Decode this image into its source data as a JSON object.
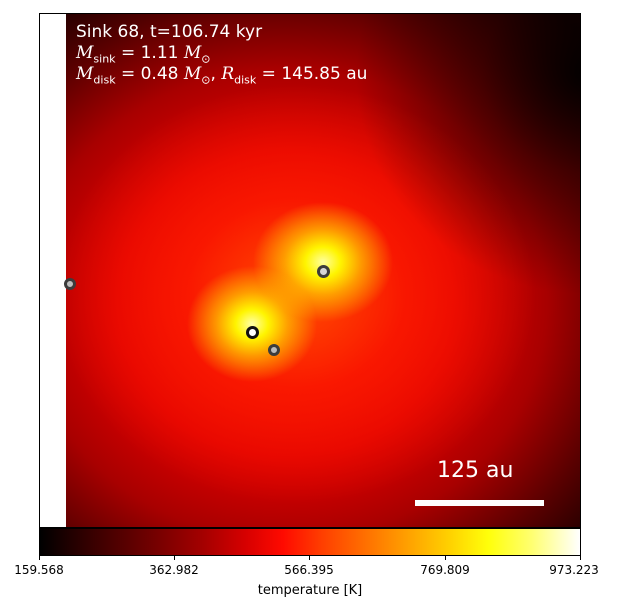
{
  "info": {
    "line1": "Sink 68, t=106.74 kyr",
    "msink_symbol": "M",
    "msink_sub": "sink",
    "msink_value": " = 1.11 ",
    "msink_unit": "M",
    "msink_unit_sub": "⊙",
    "mdisk_symbol": "M",
    "mdisk_sub": "disk",
    "mdisk_value": " = 0.48 ",
    "mdisk_unit": "M",
    "mdisk_unit_sub": "⊙",
    "sep": ", ",
    "rdisk_symbol": "R",
    "rdisk_sub": "disk",
    "rdisk_value": " = 145.85 au"
  },
  "scalebar": {
    "label": "125 au"
  },
  "colorbar": {
    "label": "temperature [K]",
    "ticks": [
      "159.568",
      "362.982",
      "566.395",
      "769.809",
      "973.223"
    ],
    "colormap": "hot"
  },
  "sinks": [
    {
      "name": "sink-a"
    },
    {
      "name": "sink-b"
    },
    {
      "name": "sink-c"
    },
    {
      "name": "sink-d"
    }
  ]
}
